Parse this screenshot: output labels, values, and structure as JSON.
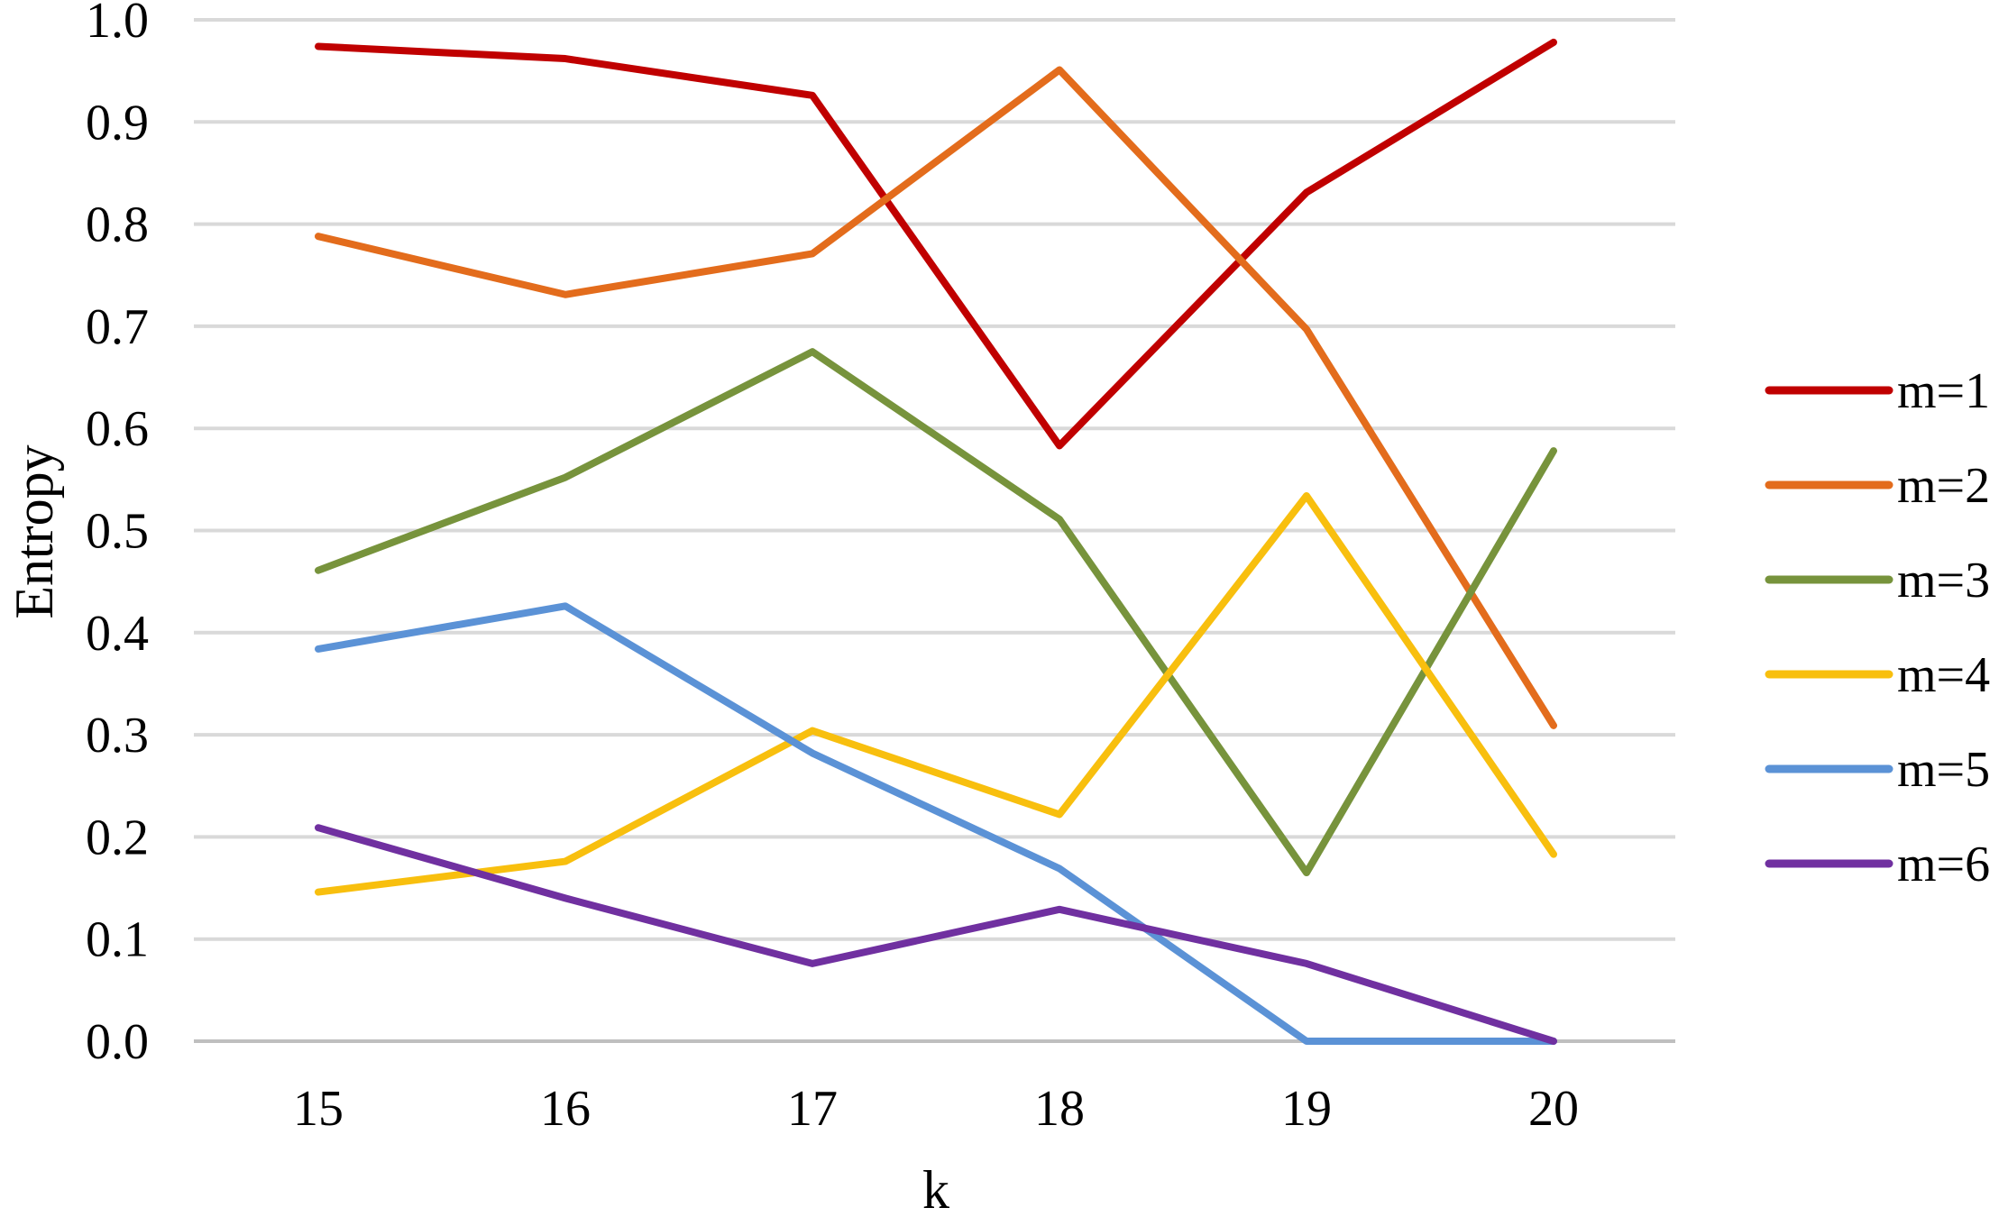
{
  "chart_data": {
    "type": "line",
    "title": "",
    "xlabel": "k",
    "ylabel": "Entropy",
    "categories": [
      "15",
      "16",
      "17",
      "18",
      "19",
      "20"
    ],
    "ylim": [
      0,
      1
    ],
    "yticks": [
      "0.0",
      "0.1",
      "0.2",
      "0.3",
      "0.4",
      "0.5",
      "0.6",
      "0.7",
      "0.8",
      "0.9",
      "1.0"
    ],
    "grid": "horizontal",
    "legend_position": "right",
    "series": [
      {
        "name": "m=1",
        "color": "#C00000",
        "values": [
          0.974,
          0.962,
          0.926,
          0.583,
          0.831,
          0.978
        ]
      },
      {
        "name": "m=2",
        "color": "#E36C1C",
        "values": [
          0.788,
          0.731,
          0.771,
          0.951,
          0.697,
          0.309
        ]
      },
      {
        "name": "m=3",
        "color": "#77933C",
        "values": [
          0.461,
          0.552,
          0.675,
          0.511,
          0.165,
          0.578
        ]
      },
      {
        "name": "m=4",
        "color": "#F8BF0E",
        "values": [
          0.146,
          0.176,
          0.304,
          0.222,
          0.534,
          0.183
        ]
      },
      {
        "name": "m=5",
        "color": "#5B92D6",
        "values": [
          0.384,
          0.426,
          0.282,
          0.169,
          0.0,
          0.0
        ]
      },
      {
        "name": "m=6",
        "color": "#7030A0",
        "values": [
          0.209,
          0.14,
          0.076,
          0.129,
          0.076,
          0.0
        ]
      }
    ]
  }
}
